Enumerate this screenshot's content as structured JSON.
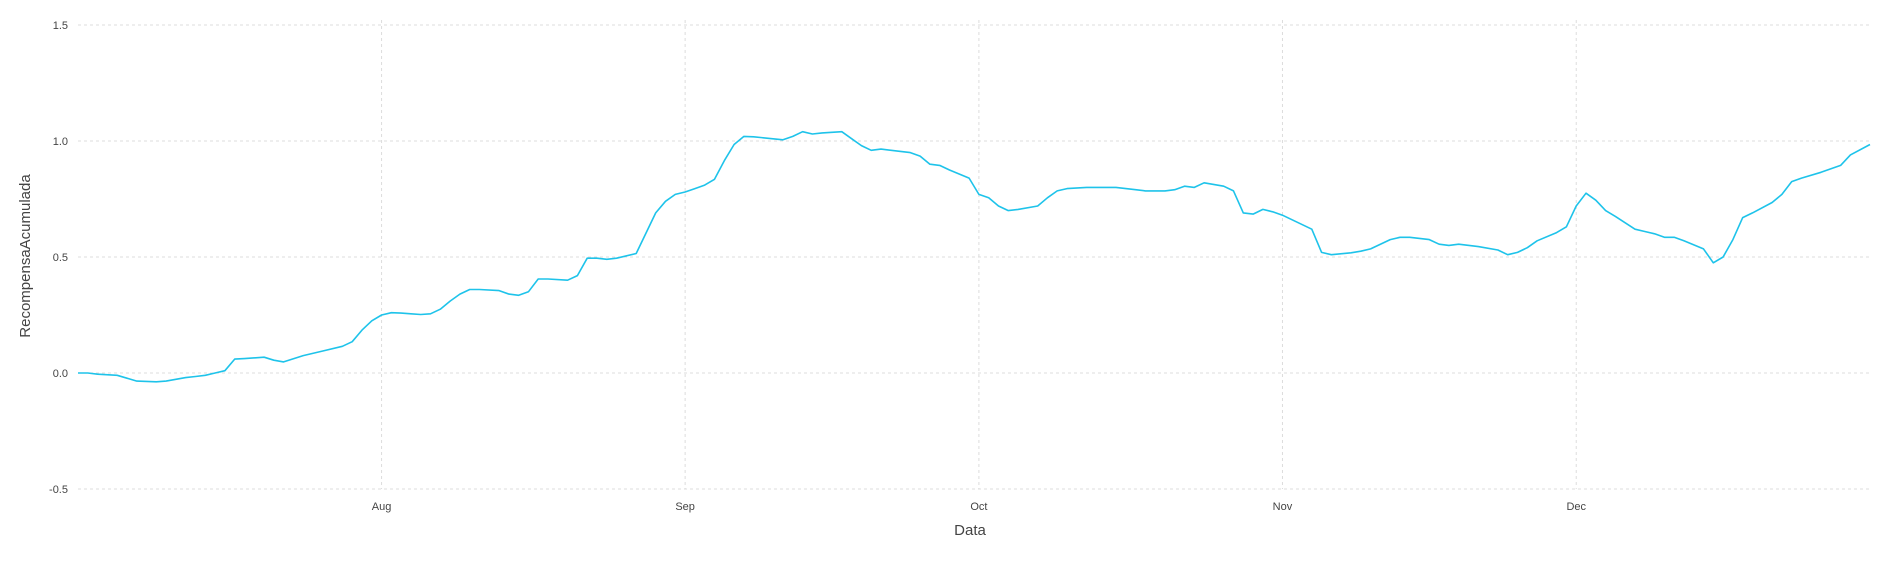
{
  "chart_data": {
    "type": "line",
    "title": "",
    "xlabel": "Data",
    "ylabel": "RecompensaAcumulada",
    "x_range": [
      "2020-07-01",
      "2020-12-31"
    ],
    "ylim": [
      -0.5,
      1.5
    ],
    "y_ticks": [
      {
        "value": -0.5,
        "label": "-0.5"
      },
      {
        "value": 0.0,
        "label": "0.0"
      },
      {
        "value": 0.5,
        "label": "0.5"
      },
      {
        "value": 1.0,
        "label": "1.0"
      },
      {
        "value": 1.5,
        "label": "1.5"
      }
    ],
    "x_ticks": [
      {
        "date": "2020-08-01",
        "label": "Aug"
      },
      {
        "date": "2020-09-01",
        "label": "Sep"
      },
      {
        "date": "2020-10-01",
        "label": "Oct"
      },
      {
        "date": "2020-11-01",
        "label": "Nov"
      },
      {
        "date": "2020-12-01",
        "label": "Dec"
      }
    ],
    "grid": true,
    "legend": "none",
    "series": [
      {
        "color": "#1ec3ea",
        "points": [
          [
            "2020-07-01",
            0.0
          ],
          [
            "2020-07-02",
            0.0
          ],
          [
            "2020-07-03",
            -0.005
          ],
          [
            "2020-07-05",
            -0.01
          ],
          [
            "2020-07-07",
            -0.035
          ],
          [
            "2020-07-09",
            -0.038
          ],
          [
            "2020-07-10",
            -0.035
          ],
          [
            "2020-07-12",
            -0.02
          ],
          [
            "2020-07-13",
            -0.015
          ],
          [
            "2020-07-14",
            -0.01
          ],
          [
            "2020-07-15",
            0.0
          ],
          [
            "2020-07-16",
            0.01
          ],
          [
            "2020-07-17",
            0.06
          ],
          [
            "2020-07-18",
            0.062
          ],
          [
            "2020-07-20",
            0.068
          ],
          [
            "2020-07-21",
            0.055
          ],
          [
            "2020-07-22",
            0.048
          ],
          [
            "2020-07-24",
            0.075
          ],
          [
            "2020-07-26",
            0.095
          ],
          [
            "2020-07-28",
            0.115
          ],
          [
            "2020-07-29",
            0.135
          ],
          [
            "2020-07-30",
            0.185
          ],
          [
            "2020-07-31",
            0.225
          ],
          [
            "2020-08-01",
            0.25
          ],
          [
            "2020-08-02",
            0.26
          ],
          [
            "2020-08-03",
            0.258
          ],
          [
            "2020-08-04",
            0.255
          ],
          [
            "2020-08-05",
            0.252
          ],
          [
            "2020-08-06",
            0.255
          ],
          [
            "2020-08-07",
            0.275
          ],
          [
            "2020-08-08",
            0.31
          ],
          [
            "2020-08-09",
            0.34
          ],
          [
            "2020-08-10",
            0.36
          ],
          [
            "2020-08-11",
            0.36
          ],
          [
            "2020-08-13",
            0.355
          ],
          [
            "2020-08-14",
            0.34
          ],
          [
            "2020-08-15",
            0.335
          ],
          [
            "2020-08-16",
            0.35
          ],
          [
            "2020-08-17",
            0.405
          ],
          [
            "2020-08-18",
            0.405
          ],
          [
            "2020-08-20",
            0.4
          ],
          [
            "2020-08-21",
            0.42
          ],
          [
            "2020-08-22",
            0.495
          ],
          [
            "2020-08-23",
            0.495
          ],
          [
            "2020-08-24",
            0.49
          ],
          [
            "2020-08-25",
            0.495
          ],
          [
            "2020-08-27",
            0.515
          ],
          [
            "2020-08-29",
            0.69
          ],
          [
            "2020-08-30",
            0.74
          ],
          [
            "2020-08-31",
            0.77
          ],
          [
            "2020-09-01",
            0.78
          ],
          [
            "2020-09-02",
            0.795
          ],
          [
            "2020-09-03",
            0.81
          ],
          [
            "2020-09-04",
            0.835
          ],
          [
            "2020-09-05",
            0.915
          ],
          [
            "2020-09-06",
            0.985
          ],
          [
            "2020-09-07",
            1.02
          ],
          [
            "2020-09-08",
            1.018
          ],
          [
            "2020-09-11",
            1.005
          ],
          [
            "2020-09-12",
            1.02
          ],
          [
            "2020-09-13",
            1.04
          ],
          [
            "2020-09-14",
            1.03
          ],
          [
            "2020-09-15",
            1.035
          ],
          [
            "2020-09-17",
            1.04
          ],
          [
            "2020-09-18",
            1.01
          ],
          [
            "2020-09-19",
            0.98
          ],
          [
            "2020-09-20",
            0.96
          ],
          [
            "2020-09-21",
            0.965
          ],
          [
            "2020-09-23",
            0.955
          ],
          [
            "2020-09-24",
            0.95
          ],
          [
            "2020-09-25",
            0.935
          ],
          [
            "2020-09-26",
            0.9
          ],
          [
            "2020-09-27",
            0.895
          ],
          [
            "2020-09-28",
            0.875
          ],
          [
            "2020-09-30",
            0.84
          ],
          [
            "2020-10-01",
            0.77
          ],
          [
            "2020-10-02",
            0.755
          ],
          [
            "2020-10-03",
            0.72
          ],
          [
            "2020-10-04",
            0.7
          ],
          [
            "2020-10-05",
            0.705
          ],
          [
            "2020-10-07",
            0.72
          ],
          [
            "2020-10-08",
            0.755
          ],
          [
            "2020-10-09",
            0.785
          ],
          [
            "2020-10-10",
            0.795
          ],
          [
            "2020-10-12",
            0.8
          ],
          [
            "2020-10-15",
            0.8
          ],
          [
            "2020-10-17",
            0.79
          ],
          [
            "2020-10-18",
            0.785
          ],
          [
            "2020-10-20",
            0.785
          ],
          [
            "2020-10-21",
            0.79
          ],
          [
            "2020-10-22",
            0.805
          ],
          [
            "2020-10-23",
            0.8
          ],
          [
            "2020-10-24",
            0.82
          ],
          [
            "2020-10-26",
            0.805
          ],
          [
            "2020-10-27",
            0.785
          ],
          [
            "2020-10-28",
            0.69
          ],
          [
            "2020-10-29",
            0.685
          ],
          [
            "2020-10-30",
            0.705
          ],
          [
            "2020-10-31",
            0.695
          ],
          [
            "2020-11-01",
            0.68
          ],
          [
            "2020-11-04",
            0.62
          ],
          [
            "2020-11-05",
            0.52
          ],
          [
            "2020-11-06",
            0.51
          ],
          [
            "2020-11-08",
            0.518
          ],
          [
            "2020-11-09",
            0.525
          ],
          [
            "2020-11-10",
            0.535
          ],
          [
            "2020-11-12",
            0.575
          ],
          [
            "2020-11-13",
            0.585
          ],
          [
            "2020-11-14",
            0.585
          ],
          [
            "2020-11-16",
            0.575
          ],
          [
            "2020-11-17",
            0.555
          ],
          [
            "2020-11-18",
            0.55
          ],
          [
            "2020-11-19",
            0.555
          ],
          [
            "2020-11-21",
            0.545
          ],
          [
            "2020-11-23",
            0.53
          ],
          [
            "2020-11-24",
            0.51
          ],
          [
            "2020-11-25",
            0.52
          ],
          [
            "2020-11-26",
            0.54
          ],
          [
            "2020-11-27",
            0.57
          ],
          [
            "2020-11-29",
            0.605
          ],
          [
            "2020-11-30",
            0.63
          ],
          [
            "2020-12-01",
            0.72
          ],
          [
            "2020-12-02",
            0.775
          ],
          [
            "2020-12-03",
            0.745
          ],
          [
            "2020-12-04",
            0.7
          ],
          [
            "2020-12-05",
            0.675
          ],
          [
            "2020-12-07",
            0.62
          ],
          [
            "2020-12-08",
            0.61
          ],
          [
            "2020-12-09",
            0.6
          ],
          [
            "2020-12-10",
            0.585
          ],
          [
            "2020-12-11",
            0.585
          ],
          [
            "2020-12-12",
            0.57
          ],
          [
            "2020-12-14",
            0.535
          ],
          [
            "2020-12-15",
            0.475
          ],
          [
            "2020-12-16",
            0.5
          ],
          [
            "2020-12-17",
            0.575
          ],
          [
            "2020-12-18",
            0.67
          ],
          [
            "2020-12-19",
            0.69
          ],
          [
            "2020-12-21",
            0.735
          ],
          [
            "2020-12-22",
            0.77
          ],
          [
            "2020-12-23",
            0.825
          ],
          [
            "2020-12-24",
            0.84
          ],
          [
            "2020-12-26",
            0.865
          ],
          [
            "2020-12-28",
            0.895
          ],
          [
            "2020-12-29",
            0.94
          ],
          [
            "2020-12-31",
            0.985
          ]
        ]
      }
    ]
  }
}
